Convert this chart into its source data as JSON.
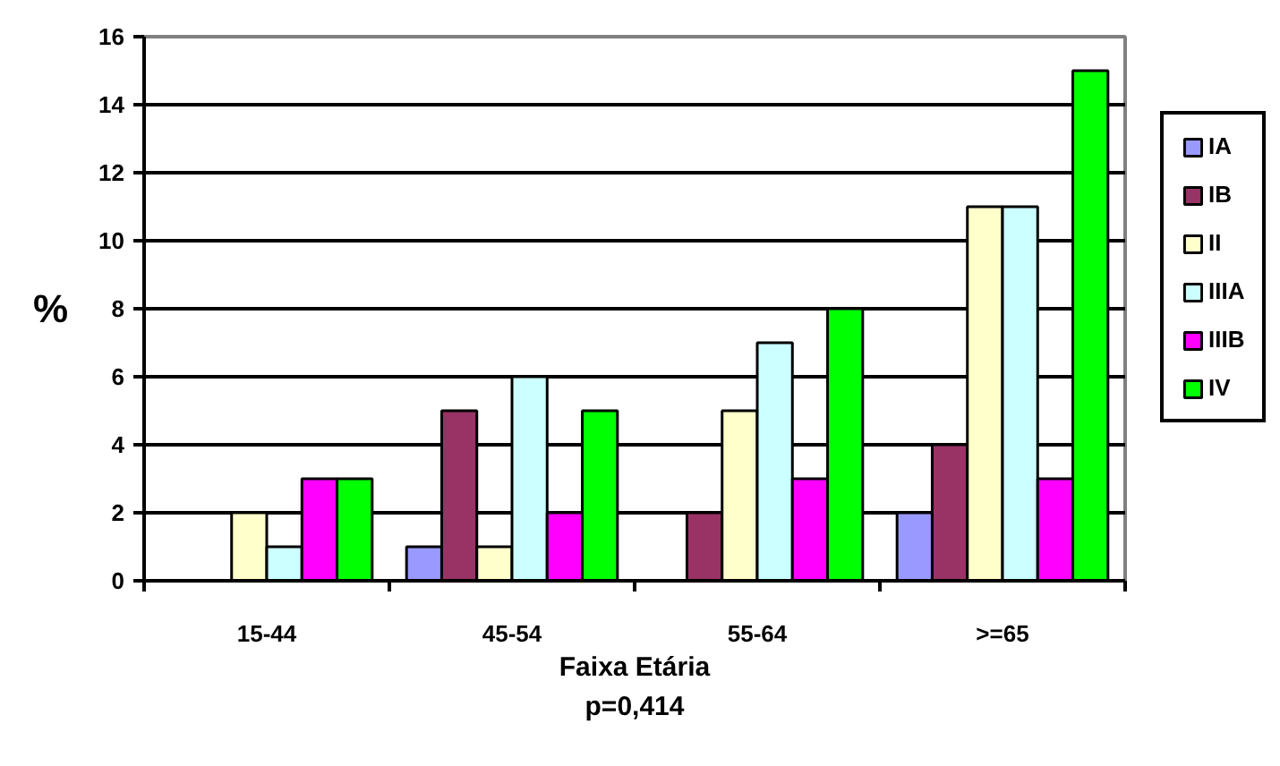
{
  "chart_data": {
    "type": "bar",
    "categories": [
      "15-44",
      "45-54",
      "55-64",
      ">=65"
    ],
    "series": [
      {
        "name": "IA",
        "color": "#9999ff",
        "values": [
          null,
          1,
          null,
          2
        ]
      },
      {
        "name": "IB",
        "color": "#993366",
        "values": [
          null,
          5,
          2,
          4
        ]
      },
      {
        "name": "II",
        "color": "#ffffcc",
        "values": [
          2,
          1,
          5,
          11
        ]
      },
      {
        "name": "IIIA",
        "color": "#ccffff",
        "values": [
          1,
          6,
          7,
          11
        ]
      },
      {
        "name": "IIIB",
        "color": "#ff00ff",
        "values": [
          3,
          2,
          3,
          3
        ]
      },
      {
        "name": "IV",
        "color": "#00ff00",
        "values": [
          3,
          5,
          8,
          15
        ]
      }
    ],
    "xlabel": "Faixa Etária",
    "ylabel": "%",
    "annotations": [
      "p=0,414"
    ],
    "ylim": [
      0,
      16
    ],
    "yticks": [
      0,
      2,
      4,
      6,
      8,
      10,
      12,
      14,
      16
    ],
    "grid": "y",
    "legend": "right"
  }
}
